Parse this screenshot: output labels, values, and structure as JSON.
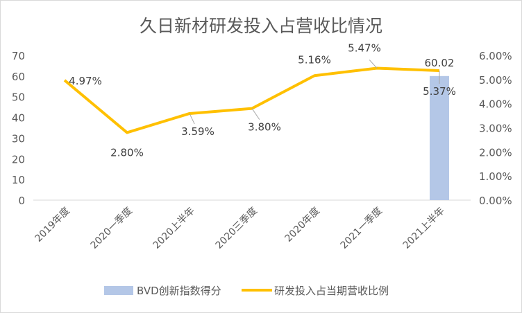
{
  "chart_data": {
    "type": "bar+line",
    "title": "久日新材研发投入占营收比情况",
    "categories": [
      "2019年度",
      "2020一季度",
      "2020上半年",
      "2020三季度",
      "2020年度",
      "2021一季度",
      "2021上半年"
    ],
    "series": [
      {
        "name": "BVD创新指数得分",
        "type": "bar",
        "axis": "left",
        "color": "#b4c7e7",
        "values": [
          null,
          null,
          null,
          null,
          null,
          null,
          60.02
        ],
        "labels": [
          "",
          "",
          "",
          "",
          "",
          "",
          "60.02"
        ]
      },
      {
        "name": "研发投入占当期营收比例",
        "type": "line",
        "axis": "right",
        "color": "#ffc000",
        "values": [
          4.97,
          2.8,
          3.59,
          3.8,
          5.16,
          5.47,
          5.37
        ],
        "labels": [
          "4.97%",
          "2.80%",
          "3.59%",
          "3.80%",
          "5.16%",
          "5.47%",
          "5.37%"
        ]
      }
    ],
    "y_left": {
      "range": [
        0,
        70
      ],
      "ticks": [
        "0",
        "10",
        "20",
        "30",
        "40",
        "50",
        "60",
        "70"
      ]
    },
    "y_right": {
      "range": [
        0,
        6
      ],
      "ticks": [
        "0.00%",
        "1.00%",
        "2.00%",
        "3.00%",
        "4.00%",
        "5.00%",
        "6.00%"
      ]
    },
    "grid": false,
    "legend": "bottom"
  }
}
